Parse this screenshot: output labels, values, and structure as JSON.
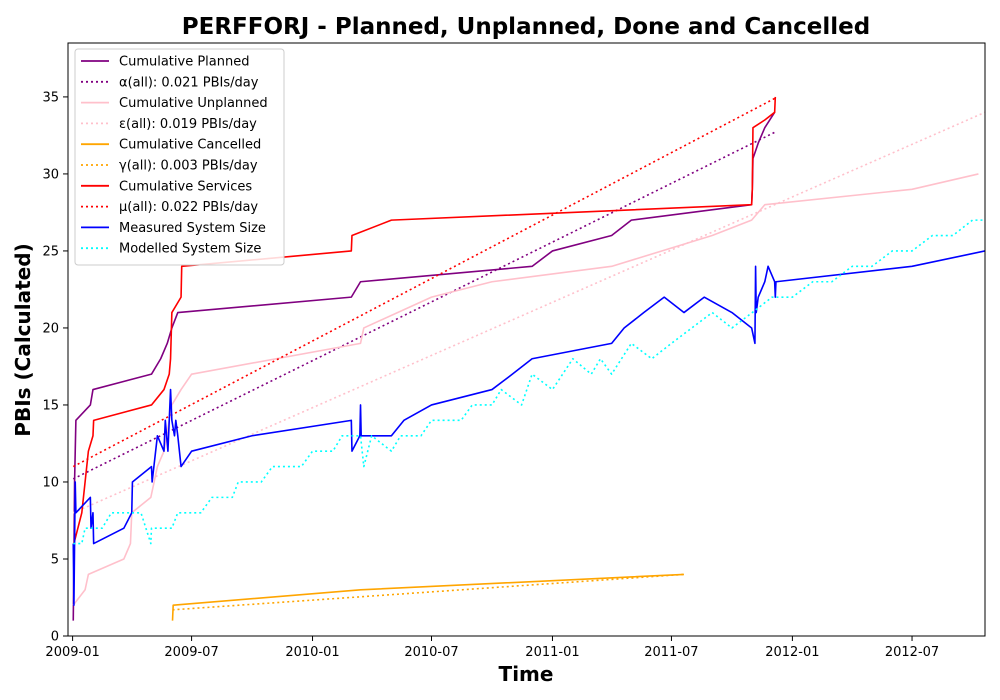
{
  "chart_data": {
    "type": "line",
    "title": "PERFFORJ - Planned, Unplanned, Done  and Cancelled",
    "xlabel": "Time",
    "ylabel": "PBIs (Calculated)",
    "x_is_date": true,
    "xlim": [
      "2008-12-25",
      "2012-10-20"
    ],
    "ylim": [
      0,
      38.5
    ],
    "x_ticks": [
      {
        "value": "2009-01-01",
        "label": "2009-01"
      },
      {
        "value": "2009-07-01",
        "label": "2009-07"
      },
      {
        "value": "2010-01-01",
        "label": "2010-01"
      },
      {
        "value": "2010-07-01",
        "label": "2010-07"
      },
      {
        "value": "2011-01-01",
        "label": "2011-01"
      },
      {
        "value": "2011-07-01",
        "label": "2011-07"
      },
      {
        "value": "2012-01-01",
        "label": "2012-01"
      },
      {
        "value": "2012-07-01",
        "label": "2012-07"
      }
    ],
    "y_ticks": [
      0,
      5,
      10,
      15,
      20,
      25,
      30,
      35
    ],
    "grid": false,
    "legend_position": "top-left",
    "series": [
      {
        "name": "Cumulative Planned",
        "color": "#800080",
        "style": "solid",
        "points": [
          [
            "2009-01-02",
            1
          ],
          [
            "2009-01-03",
            5
          ],
          [
            "2009-01-04",
            10
          ],
          [
            "2009-01-05",
            12
          ],
          [
            "2009-01-06",
            14
          ],
          [
            "2009-01-28",
            15
          ],
          [
            "2009-02-01",
            16
          ],
          [
            "2009-05-01",
            17
          ],
          [
            "2009-05-15",
            18
          ],
          [
            "2009-05-25",
            19
          ],
          [
            "2009-06-01",
            20
          ],
          [
            "2009-06-10",
            21
          ],
          [
            "2010-03-01",
            22
          ],
          [
            "2010-03-15",
            23
          ],
          [
            "2010-12-01",
            24
          ],
          [
            "2011-01-01",
            25
          ],
          [
            "2011-04-01",
            26
          ],
          [
            "2011-05-01",
            27
          ],
          [
            "2011-10-31",
            28
          ],
          [
            "2011-11-01",
            29
          ],
          [
            "2011-11-02",
            31
          ],
          [
            "2011-11-10",
            32
          ],
          [
            "2011-11-20",
            33
          ],
          [
            "2011-12-05",
            34
          ]
        ]
      },
      {
        "name": "α(all): 0.021 PBIs/day",
        "color": "#800080",
        "style": "dotted",
        "points": [
          [
            "2009-01-02",
            10.2
          ],
          [
            "2011-12-05",
            32.7
          ]
        ]
      },
      {
        "name": "Cumulative Unplanned",
        "color": "#ffc0cb",
        "style": "solid",
        "points": [
          [
            "2009-01-02",
            2
          ],
          [
            "2009-01-20",
            3
          ],
          [
            "2009-01-25",
            4
          ],
          [
            "2009-03-20",
            5
          ],
          [
            "2009-03-30",
            6
          ],
          [
            "2009-04-01",
            8
          ],
          [
            "2009-04-30",
            9
          ],
          [
            "2009-05-10",
            11
          ],
          [
            "2009-05-20",
            12
          ],
          [
            "2009-06-01",
            15
          ],
          [
            "2009-06-15",
            16
          ],
          [
            "2009-07-01",
            17
          ],
          [
            "2010-03-15",
            19
          ],
          [
            "2010-03-20",
            20
          ],
          [
            "2010-07-01",
            22
          ],
          [
            "2010-10-01",
            23
          ],
          [
            "2011-04-01",
            24
          ],
          [
            "2011-09-01",
            26
          ],
          [
            "2011-10-31",
            27
          ],
          [
            "2011-11-20",
            28
          ],
          [
            "2012-07-01",
            29
          ],
          [
            "2012-10-10",
            30
          ]
        ]
      },
      {
        "name": "ε(all): 0.019 PBIs/day",
        "color": "#ffc0cb",
        "style": "dotted",
        "points": [
          [
            "2009-01-02",
            8.0
          ],
          [
            "2012-10-20",
            34.0
          ]
        ]
      },
      {
        "name": "Cumulative Cancelled",
        "color": "#ffa500",
        "style": "solid",
        "points": [
          [
            "2009-06-02",
            1
          ],
          [
            "2009-06-03",
            2
          ],
          [
            "2010-03-15",
            3
          ],
          [
            "2011-07-20",
            4
          ]
        ]
      },
      {
        "name": "γ(all): 0.003 PBIs/day",
        "color": "#ffa500",
        "style": "dotted",
        "points": [
          [
            "2009-06-02",
            1.7
          ],
          [
            "2011-07-20",
            4.0
          ]
        ]
      },
      {
        "name": "Cumulative Services",
        "color": "#ff0000",
        "style": "solid",
        "points": [
          [
            "2009-01-03",
            6
          ],
          [
            "2009-01-15",
            8
          ],
          [
            "2009-01-25",
            12
          ],
          [
            "2009-02-01",
            13
          ],
          [
            "2009-02-02",
            14
          ],
          [
            "2009-05-01",
            15
          ],
          [
            "2009-05-20",
            16
          ],
          [
            "2009-05-28",
            17
          ],
          [
            "2009-05-30",
            18
          ],
          [
            "2009-06-01",
            21
          ],
          [
            "2009-06-15",
            22
          ],
          [
            "2009-06-16",
            24
          ],
          [
            "2010-03-01",
            25
          ],
          [
            "2010-03-02",
            26
          ],
          [
            "2010-05-01",
            27
          ],
          [
            "2011-10-31",
            28
          ],
          [
            "2011-11-01",
            29
          ],
          [
            "2011-11-02",
            33
          ],
          [
            "2011-11-20",
            33.5
          ],
          [
            "2011-12-05",
            34
          ],
          [
            "2011-12-06",
            35
          ]
        ]
      },
      {
        "name": "μ(all): 0.022 PBIs/day",
        "color": "#ff0000",
        "style": "dotted",
        "points": [
          [
            "2009-01-02",
            11.0
          ],
          [
            "2011-12-05",
            34.9
          ]
        ]
      },
      {
        "name": "Measured System Size",
        "color": "#0000ff",
        "style": "solid",
        "points": [
          [
            "2009-01-02",
            6
          ],
          [
            "2009-01-03",
            2
          ],
          [
            "2009-01-05",
            10
          ],
          [
            "2009-01-06",
            8
          ],
          [
            "2009-01-28",
            9
          ],
          [
            "2009-01-29",
            7
          ],
          [
            "2009-02-01",
            8
          ],
          [
            "2009-02-02",
            6
          ],
          [
            "2009-03-20",
            7
          ],
          [
            "2009-04-01",
            8
          ],
          [
            "2009-04-02",
            10
          ],
          [
            "2009-05-01",
            11
          ],
          [
            "2009-05-02",
            10
          ],
          [
            "2009-05-10",
            13
          ],
          [
            "2009-05-20",
            12
          ],
          [
            "2009-05-22",
            14
          ],
          [
            "2009-05-26",
            12
          ],
          [
            "2009-05-30",
            16
          ],
          [
            "2009-06-01",
            14
          ],
          [
            "2009-06-05",
            13
          ],
          [
            "2009-06-07",
            14
          ],
          [
            "2009-06-10",
            13
          ],
          [
            "2009-06-15",
            11
          ],
          [
            "2009-07-01",
            12
          ],
          [
            "2009-10-01",
            13
          ],
          [
            "2010-03-01",
            14
          ],
          [
            "2010-03-02",
            12
          ],
          [
            "2010-03-14",
            13
          ],
          [
            "2010-03-15",
            15
          ],
          [
            "2010-03-16",
            13
          ],
          [
            "2010-05-01",
            13
          ],
          [
            "2010-05-20",
            14
          ],
          [
            "2010-07-01",
            15
          ],
          [
            "2010-10-01",
            16
          ],
          [
            "2010-11-01",
            17
          ],
          [
            "2010-12-01",
            18
          ],
          [
            "2011-04-01",
            19
          ],
          [
            "2011-04-20",
            20
          ],
          [
            "2011-05-20",
            21
          ],
          [
            "2011-06-20",
            22
          ],
          [
            "2011-07-20",
            21
          ],
          [
            "2011-08-20",
            22
          ],
          [
            "2011-10-01",
            21
          ],
          [
            "2011-10-31",
            20
          ],
          [
            "2011-11-05",
            19
          ],
          [
            "2011-11-06",
            24
          ],
          [
            "2011-11-07",
            21
          ],
          [
            "2011-11-10",
            22
          ],
          [
            "2011-11-20",
            23
          ],
          [
            "2011-11-25",
            24
          ],
          [
            "2011-12-05",
            23
          ],
          [
            "2011-12-06",
            22
          ],
          [
            "2011-12-07",
            23
          ],
          [
            "2012-07-01",
            24
          ],
          [
            "2012-10-20",
            25
          ]
        ]
      },
      {
        "name": "Modelled System Size",
        "color": "#00ffff",
        "style": "dotted",
        "points": [
          [
            "2009-01-02",
            6
          ],
          [
            "2009-01-15",
            6
          ],
          [
            "2009-01-20",
            7
          ],
          [
            "2009-02-15",
            7
          ],
          [
            "2009-03-01",
            8
          ],
          [
            "2009-04-15",
            8
          ],
          [
            "2009-04-30",
            6
          ],
          [
            "2009-05-01",
            7
          ],
          [
            "2009-06-01",
            7
          ],
          [
            "2009-06-10",
            8
          ],
          [
            "2009-07-15",
            8
          ],
          [
            "2009-08-01",
            9
          ],
          [
            "2009-09-01",
            9
          ],
          [
            "2009-09-10",
            10
          ],
          [
            "2009-10-15",
            10
          ],
          [
            "2009-11-01",
            11
          ],
          [
            "2009-12-15",
            11
          ],
          [
            "2010-01-01",
            12
          ],
          [
            "2010-02-01",
            12
          ],
          [
            "2010-02-15",
            13
          ],
          [
            "2010-03-15",
            13
          ],
          [
            "2010-03-20",
            11
          ],
          [
            "2010-04-01",
            13
          ],
          [
            "2010-05-01",
            12
          ],
          [
            "2010-05-15",
            13
          ],
          [
            "2010-06-15",
            13
          ],
          [
            "2010-07-01",
            14
          ],
          [
            "2010-08-15",
            14
          ],
          [
            "2010-09-01",
            15
          ],
          [
            "2010-10-01",
            15
          ],
          [
            "2010-10-15",
            16
          ],
          [
            "2010-11-15",
            15
          ],
          [
            "2010-12-01",
            17
          ],
          [
            "2011-01-01",
            16
          ],
          [
            "2011-02-01",
            18
          ],
          [
            "2011-03-01",
            17
          ],
          [
            "2011-03-15",
            18
          ],
          [
            "2011-04-01",
            17
          ],
          [
            "2011-05-01",
            19
          ],
          [
            "2011-06-01",
            18
          ],
          [
            "2011-07-01",
            19
          ],
          [
            "2011-08-01",
            20
          ],
          [
            "2011-09-01",
            21
          ],
          [
            "2011-10-01",
            20
          ],
          [
            "2011-11-01",
            21
          ],
          [
            "2011-12-01",
            22
          ],
          [
            "2012-01-01",
            22
          ],
          [
            "2012-02-01",
            23
          ],
          [
            "2012-03-01",
            23
          ],
          [
            "2012-04-01",
            24
          ],
          [
            "2012-05-01",
            24
          ],
          [
            "2012-06-01",
            25
          ],
          [
            "2012-07-01",
            25
          ],
          [
            "2012-08-01",
            26
          ],
          [
            "2012-09-01",
            26
          ],
          [
            "2012-10-01",
            27
          ],
          [
            "2012-10-20",
            27
          ]
        ]
      }
    ]
  }
}
